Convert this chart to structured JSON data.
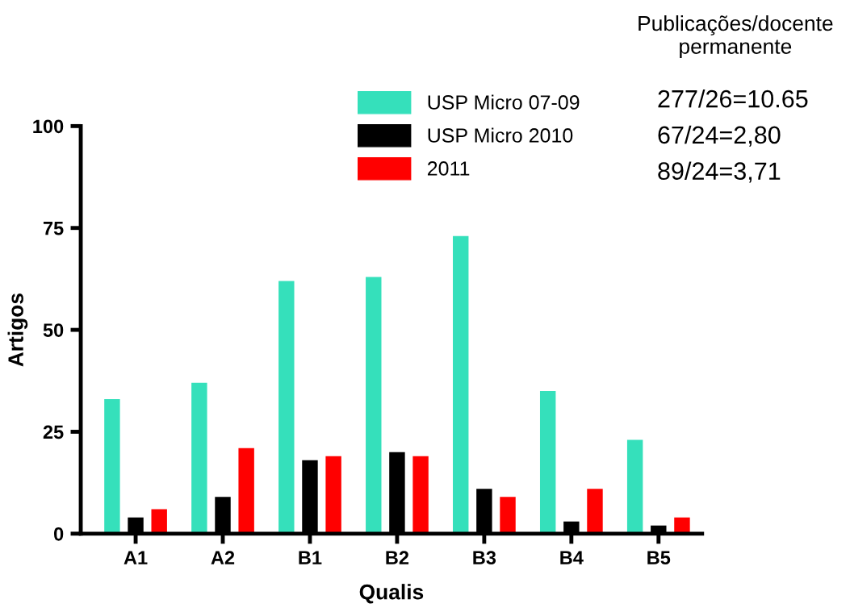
{
  "chart_data": {
    "type": "bar",
    "xlabel": "Qualis",
    "ylabel": "Artigos",
    "categories": [
      "A1",
      "A2",
      "B1",
      "B2",
      "B3",
      "B4",
      "B5"
    ],
    "series": [
      {
        "name": "USP Micro 07-09",
        "color": "#35e0bb",
        "values": [
          33,
          37,
          62,
          63,
          73,
          35,
          23
        ]
      },
      {
        "name": "USP Micro 2010",
        "color": "#000000",
        "values": [
          4,
          9,
          18,
          20,
          11,
          3,
          2
        ]
      },
      {
        "name": "2011",
        "color": "#ff0000",
        "values": [
          6,
          21,
          19,
          19,
          9,
          11,
          4
        ]
      }
    ],
    "ylim": [
      0,
      100
    ],
    "yticks": [
      0,
      25,
      50,
      75,
      100
    ],
    "grid": false,
    "legend": "top",
    "annotations": [
      "Publicações/docente\npermanente",
      "277/26=10.65",
      "67/24=2,80",
      "89/24=3,71"
    ]
  }
}
